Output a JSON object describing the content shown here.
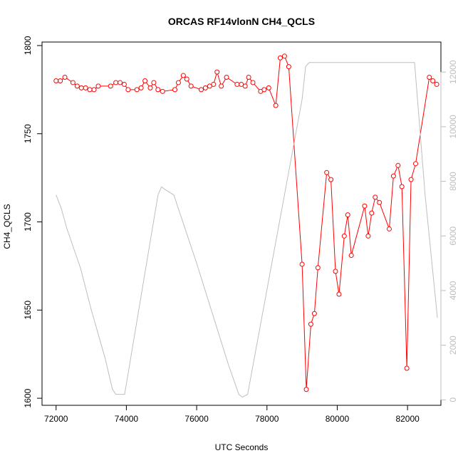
{
  "chart_data": {
    "type": "line",
    "title": "ORCAS RF14vlonN CH4_QCLS",
    "xlabel": "UTC Seconds",
    "ylabel": "CH4_QCLS",
    "xlim": [
      71600,
      82950
    ],
    "ylim": [
      1596,
      1802
    ],
    "y2lim": [
      -200,
      13100
    ],
    "x_ticks": [
      "72000",
      "74000",
      "76000",
      "78000",
      "80000",
      "82000"
    ],
    "y_ticks": [
      "1600",
      "1650",
      "1700",
      "1750",
      "1800"
    ],
    "y2_ticks": [
      "0",
      "2000",
      "4000",
      "6000",
      "8000",
      "10000",
      "12000"
    ],
    "series": [
      {
        "axis": "left",
        "color": "#ff0000",
        "marker": "open-circle",
        "x": [
          72000,
          72120,
          72250,
          72480,
          72600,
          72720,
          72840,
          72960,
          73080,
          73200,
          73550,
          73700,
          73820,
          73940,
          74050,
          74300,
          74420,
          74530,
          74680,
          74780,
          74900,
          75030,
          75380,
          75480,
          75620,
          75720,
          75840,
          76130,
          76250,
          76370,
          76480,
          76580,
          76700,
          76850,
          77150,
          77270,
          77380,
          77480,
          77600,
          77820,
          77920,
          78050,
          78250,
          78380,
          78500,
          78620,
          79000,
          79120,
          79250,
          79350,
          79450,
          79700,
          79820,
          79950,
          80050,
          80200,
          80300,
          80400,
          80780,
          80880,
          80980,
          81080,
          81200,
          81480,
          81600,
          81730,
          81840,
          81980,
          82100,
          82230,
          82620,
          82720,
          82830
        ],
        "values": [
          1780,
          1780,
          1782,
          1779,
          1777,
          1776,
          1776,
          1775,
          1775,
          1777,
          1777,
          1779,
          1779,
          1778,
          1775,
          1775,
          1776,
          1780,
          1776,
          1779,
          1775,
          1774,
          1775,
          1779,
          1783,
          1781,
          1777,
          1775,
          1776,
          1777,
          1778,
          1785,
          1777,
          1782,
          1778,
          1778,
          1777,
          1782,
          1779,
          1774,
          1775,
          1776,
          1766,
          1793,
          1794,
          1788,
          1676,
          1605,
          1642,
          1648,
          1674,
          1728,
          1724,
          1672,
          1659,
          1692,
          1704,
          1681,
          1709,
          1692,
          1705,
          1714,
          1711,
          1696,
          1726,
          1732,
          1720,
          1617,
          1724,
          1733,
          1782,
          1780,
          1778
        ]
      },
      {
        "axis": "right",
        "color": "#bebebe",
        "marker": "none",
        "x": [
          72000,
          72150,
          72300,
          72700,
          73000,
          73400,
          73600,
          73700,
          73950,
          74900,
          75000,
          75100,
          75350,
          76000,
          76900,
          77200,
          77300,
          77450,
          79000,
          79100,
          79200,
          80000,
          81000,
          82200,
          82500,
          82850
        ],
        "values": [
          7500,
          7000,
          6300,
          4800,
          3300,
          1500,
          400,
          200,
          200,
          7500,
          7800,
          7700,
          7500,
          5000,
          1300,
          200,
          100,
          200,
          11000,
          12200,
          12350,
          12350,
          12350,
          12350,
          7500,
          3000
        ]
      }
    ]
  }
}
